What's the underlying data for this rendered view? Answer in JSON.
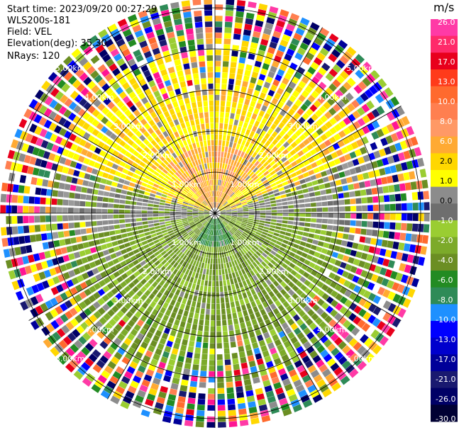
{
  "info": {
    "start_time": "Start time: 2023/09/20 00:27:29",
    "instrument": "WLS200s-181",
    "field": "Field: VEL",
    "elevation": "Elevation(deg): 35.30",
    "nrays": "NRays: 120"
  },
  "colorbar": {
    "unit": "m/s",
    "colors": [
      "#ff3aa6",
      "#ff2a6a",
      "#e8001c",
      "#ff3b1a",
      "#ff6a2e",
      "#ff7f50",
      "#ff9966",
      "#ffaa33",
      "#ffd700",
      "#ffff00",
      "#8c8c8c",
      "#6e6e6e",
      "#9acd32",
      "#7caa2a",
      "#6b8e23",
      "#228b22",
      "#2e8b57",
      "#1e90ff",
      "#0000ff",
      "#0000cd",
      "#000099",
      "#191970",
      "#000066",
      "#000033"
    ],
    "labels": [
      "26.0",
      "21.0",
      "17.0",
      "13.0",
      "10.0",
      "8.0",
      "6.0",
      "2.0",
      "1.0",
      "0.0",
      "-1.0",
      "-2.0",
      "-4.0",
      "-6.0",
      "-8.0",
      "-10.0",
      "-13.0",
      "-17.0",
      "-21.0",
      "-26.0",
      "-30.0"
    ]
  },
  "chart_data": {
    "type": "heatmap",
    "projection": "polar PPI",
    "nrays": 120,
    "range_rings_km": [
      1.0,
      2.0,
      3.0,
      4.0,
      5.0
    ],
    "range_ring_labels": [
      "1.00km",
      "2.00km",
      "3.00km",
      "4.00km",
      "5.00km"
    ],
    "spokes_deg": [
      0,
      30,
      60,
      90,
      120,
      150,
      180,
      210,
      240,
      270,
      300,
      330
    ],
    "velocity_range_ms": [
      -30.0,
      26.0
    ],
    "pattern": "Near-field: positive (yellow/orange, 1-8 m/s) to the north, near-zero (gray) east-west, negative (green, -1 to -6 m/s) to the south; far field (>3.5 km) noisy multi-color."
  }
}
